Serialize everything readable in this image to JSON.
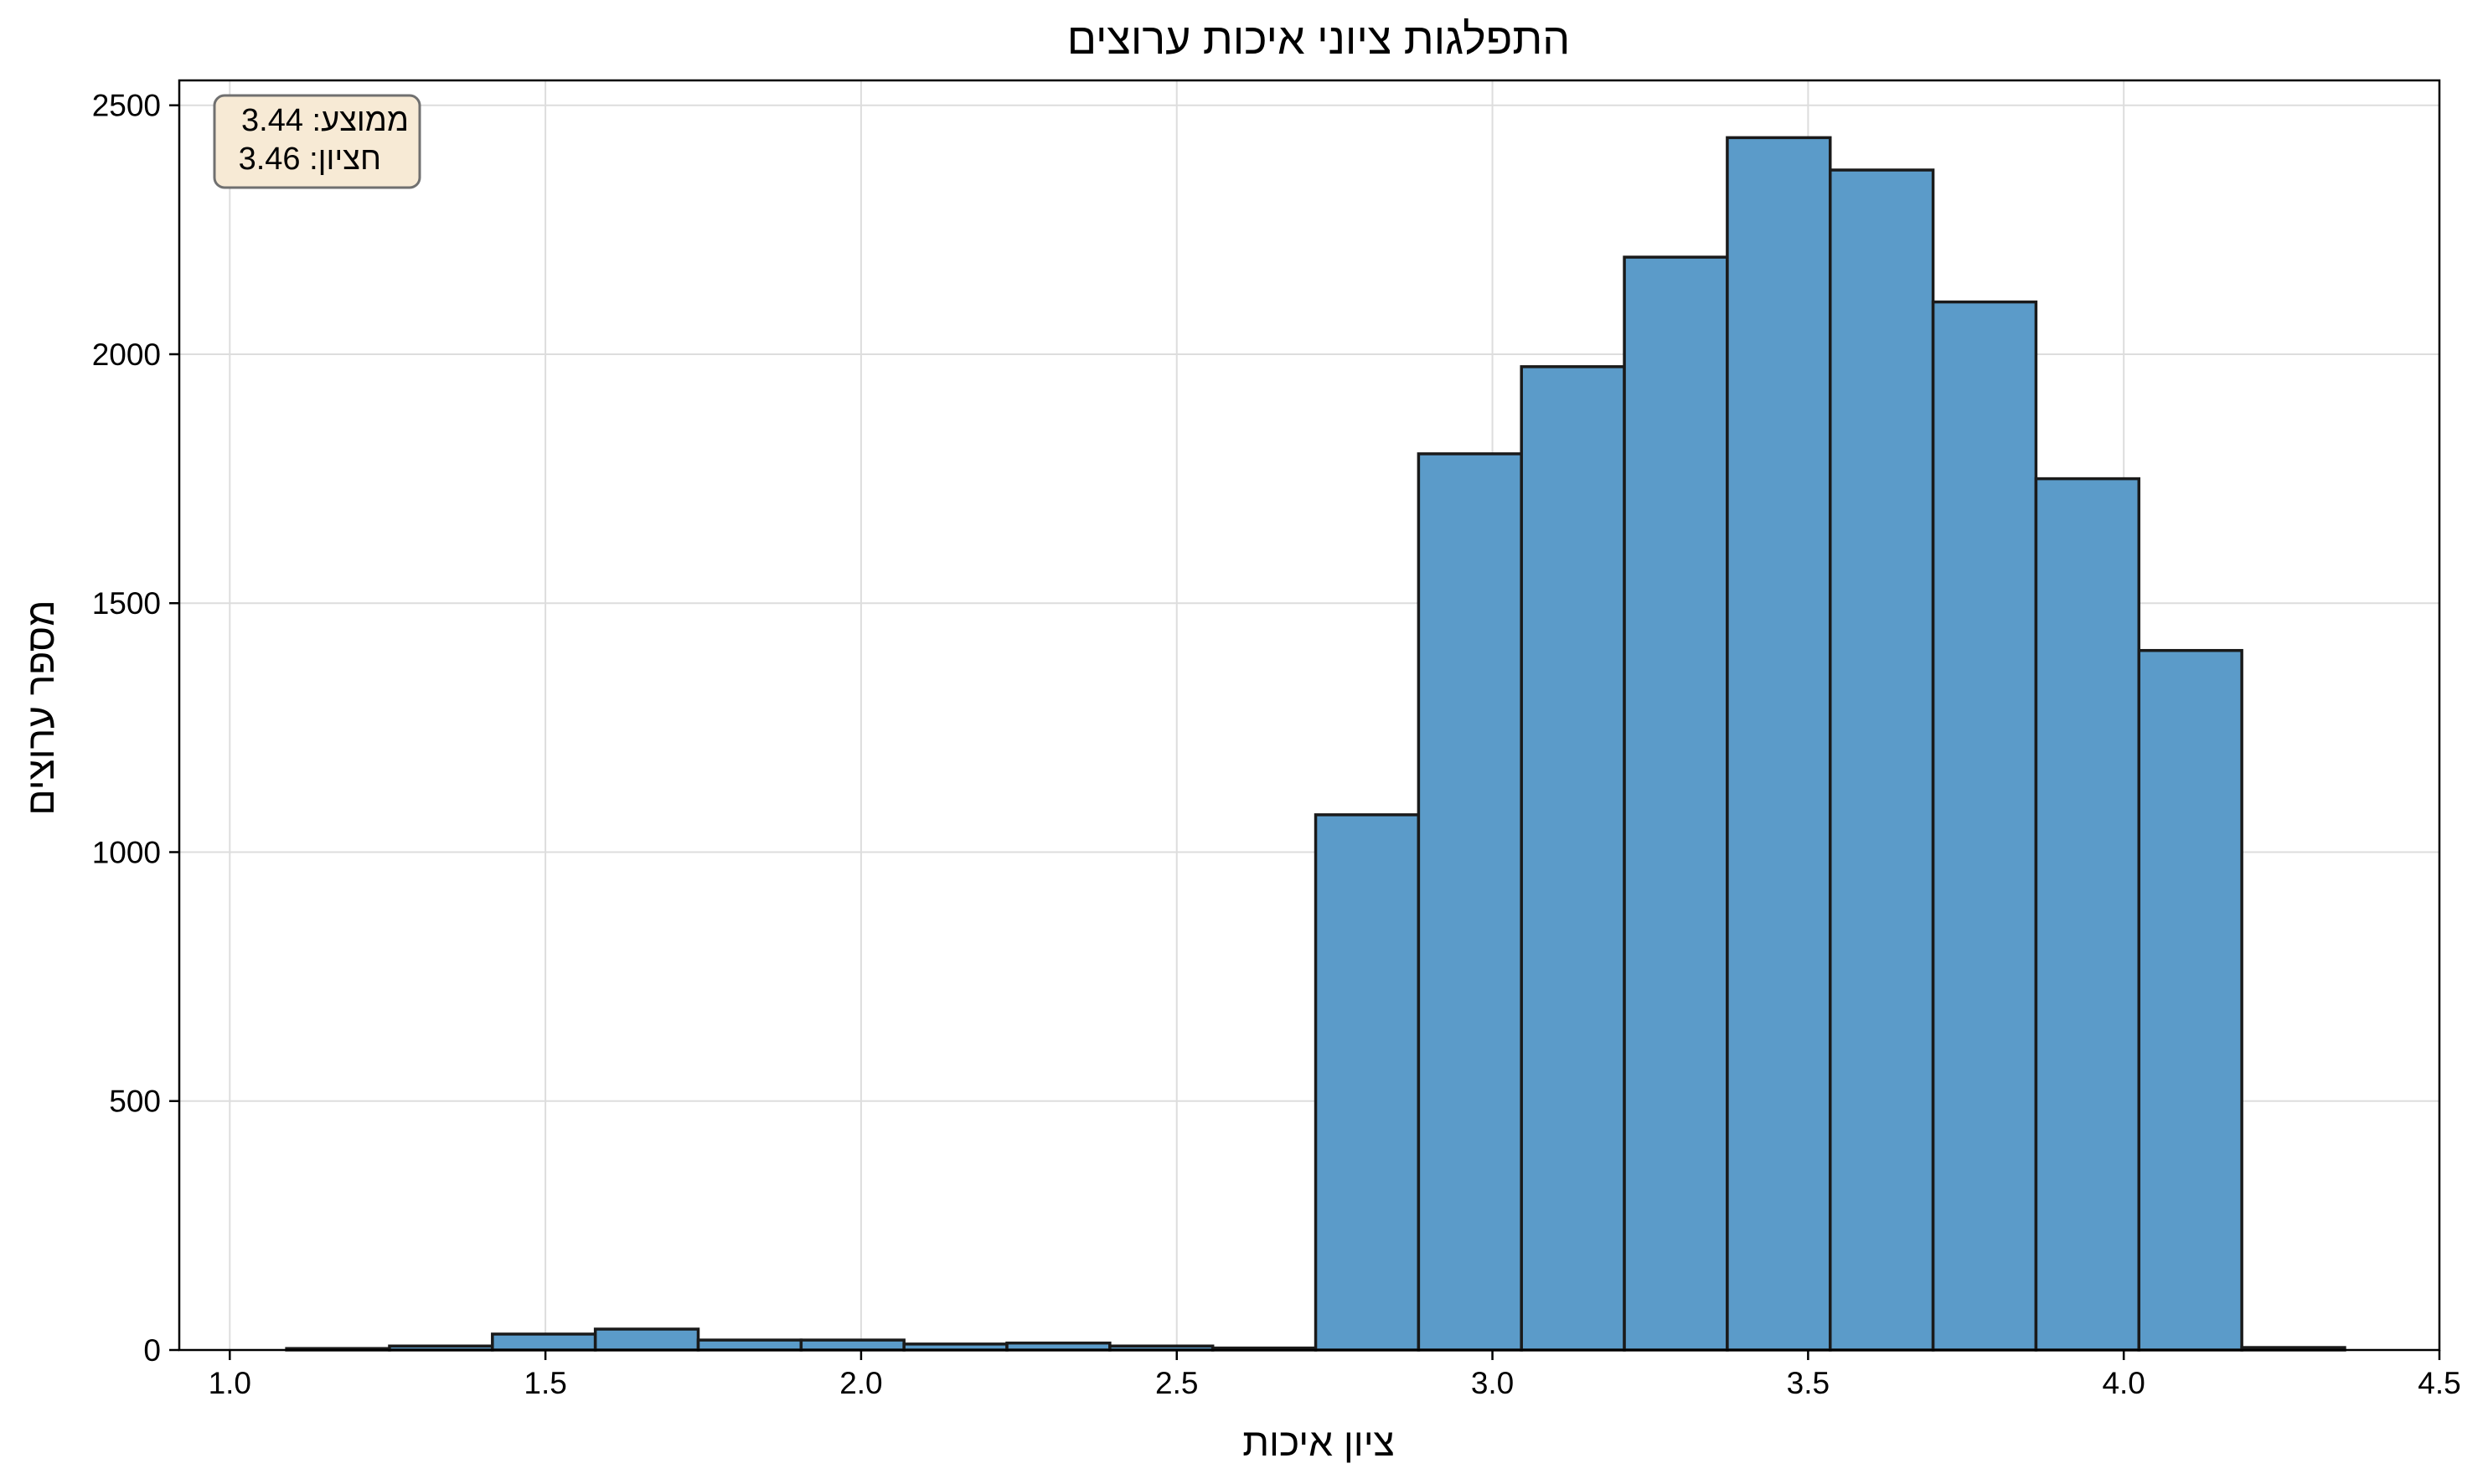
{
  "chart_data": {
    "type": "bar",
    "title": "התפלגות ציוני איכות ערוצים",
    "xlabel": "ציון איכות",
    "ylabel": "מספר ערוצים",
    "xlim": [
      0.92,
      4.5
    ],
    "ylim": [
      0,
      2550
    ],
    "x_ticks": [
      "1.0",
      "1.5",
      "2.0",
      "2.5",
      "3.0",
      "3.5",
      "4.0",
      "4.5"
    ],
    "y_ticks": [
      "0",
      "500",
      "1000",
      "1500",
      "2000",
      "2500"
    ],
    "grid": true,
    "bar_color": "#5b9bc9",
    "edge_color": "#1a1a1a",
    "bins": [
      {
        "x0": 1.09,
        "x1": 1.253,
        "count": 3
      },
      {
        "x0": 1.253,
        "x1": 1.416,
        "count": 8
      },
      {
        "x0": 1.416,
        "x1": 1.579,
        "count": 32
      },
      {
        "x0": 1.579,
        "x1": 1.742,
        "count": 42
      },
      {
        "x0": 1.742,
        "x1": 1.905,
        "count": 20
      },
      {
        "x0": 1.905,
        "x1": 2.068,
        "count": 20
      },
      {
        "x0": 2.068,
        "x1": 2.231,
        "count": 12
      },
      {
        "x0": 2.231,
        "x1": 2.394,
        "count": 14
      },
      {
        "x0": 2.394,
        "x1": 2.557,
        "count": 8
      },
      {
        "x0": 2.557,
        "x1": 2.72,
        "count": 4
      },
      {
        "x0": 2.72,
        "x1": 2.883,
        "count": 1075
      },
      {
        "x0": 2.883,
        "x1": 3.046,
        "count": 1800
      },
      {
        "x0": 3.046,
        "x1": 3.209,
        "count": 1975
      },
      {
        "x0": 3.209,
        "x1": 3.372,
        "count": 2195
      },
      {
        "x0": 3.372,
        "x1": 3.535,
        "count": 2435
      },
      {
        "x0": 3.535,
        "x1": 3.698,
        "count": 2370
      },
      {
        "x0": 3.698,
        "x1": 3.861,
        "count": 2105
      },
      {
        "x0": 3.861,
        "x1": 4.024,
        "count": 1750
      },
      {
        "x0": 4.024,
        "x1": 4.187,
        "count": 1405
      },
      {
        "x0": 4.187,
        "x1": 4.35,
        "count": 5
      }
    ],
    "annotations": [
      "ממוצע: 3.44",
      "חציון: 3.46"
    ],
    "annotation_box_fill": "#f7ead5"
  }
}
